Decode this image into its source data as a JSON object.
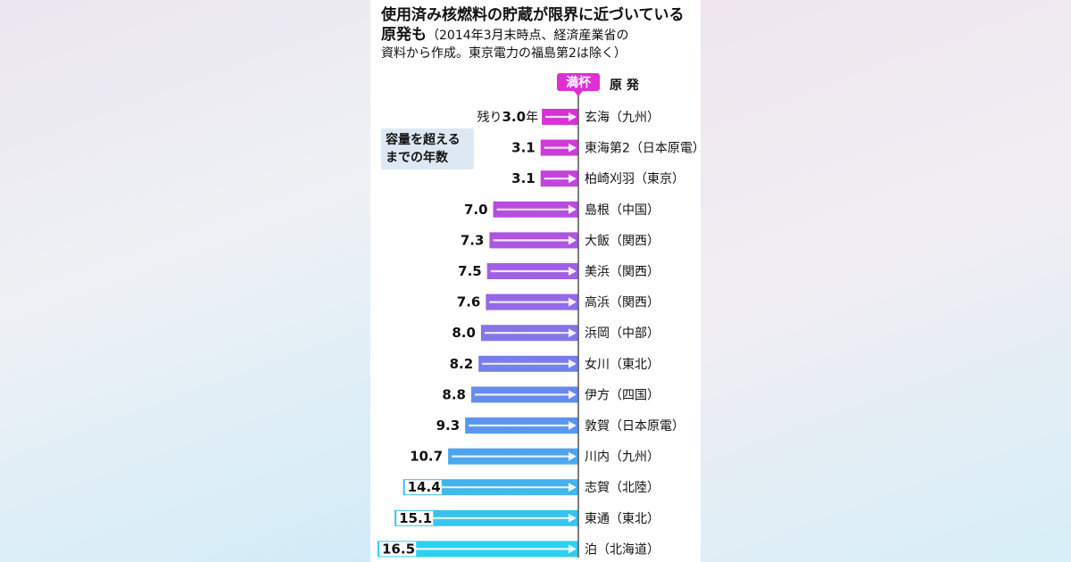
{
  "chart_data": {
    "type": "bar",
    "title": "使用済み核燃料の貯蔵が限界に近づいている原発も",
    "title_note": "（2014年3月末時点、経済産業省の",
    "subtitle": "資料から作成。東京電力の福島第2は除く）",
    "full_label": "満杯",
    "column_header": "原 発",
    "legend": "容量を超えるまでの年数",
    "legend_lines": [
      "容量を超える",
      "までの年数"
    ],
    "first_value_prefix": "残り",
    "first_value_suffix": "年",
    "categories": [
      "玄海（九州）",
      "東海第2（日本原電）",
      "柏崎刈羽（東京）",
      "島根（中国）",
      "大飯（関西）",
      "美浜（関西）",
      "高浜（関西）",
      "浜岡（中部）",
      "女川（東北）",
      "伊方（四国）",
      "敦賀（日本原電）",
      "川内（九州）",
      "志賀（北陸）",
      "東通（東北）",
      "泊（北海道）"
    ],
    "values": [
      3.0,
      3.1,
      3.1,
      7.0,
      7.3,
      7.5,
      7.6,
      8.0,
      8.2,
      8.8,
      9.3,
      10.7,
      14.4,
      15.1,
      16.5
    ],
    "value_labels": [
      "3.0",
      "3.1",
      "3.1",
      "7.0",
      "7.3",
      "7.5",
      "7.6",
      "8.0",
      "8.2",
      "8.8",
      "9.3",
      "10.7",
      "14.4",
      "15.1",
      "16.5"
    ],
    "xlim": [
      0,
      16.5
    ],
    "colors": {
      "magenta": "#dd2fd4",
      "violet": "#9b64e8",
      "blue": "#5b93ee",
      "cyan": "#2fd0ee",
      "axis": "#555555",
      "text": "#111111",
      "label_bg": "#ffffff"
    }
  }
}
